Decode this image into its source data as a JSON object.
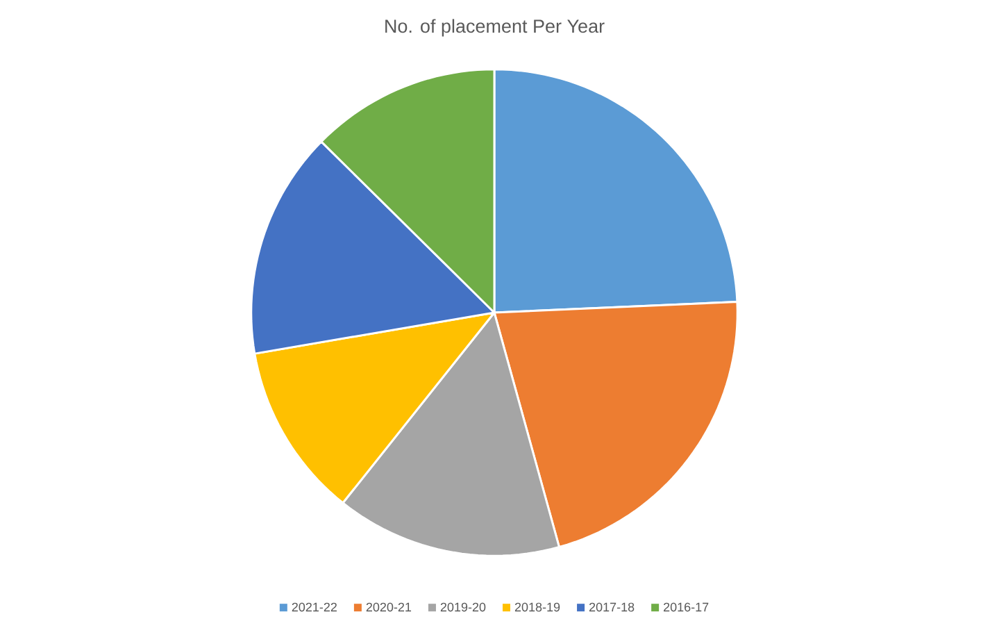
{
  "chart_data": {
    "type": "pie",
    "title": "No. of placement Per Year",
    "categories": [
      "2021-22",
      "2020-21",
      "2019-20",
      "2018-19",
      "2017-18",
      "2016-17"
    ],
    "values": [
      24.3,
      21.4,
      15,
      11.6,
      15.1,
      12.6
    ],
    "colors": [
      "#5b9bd5",
      "#ed7d31",
      "#a5a5a5",
      "#ffc000",
      "#4472c4",
      "#70ad47"
    ],
    "legend": "bottom"
  }
}
